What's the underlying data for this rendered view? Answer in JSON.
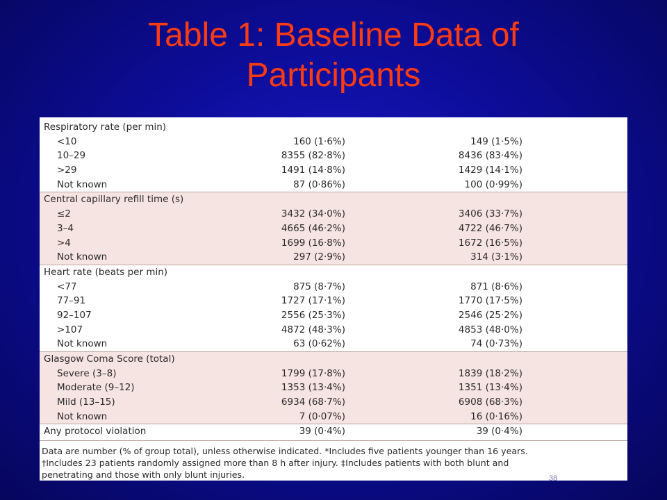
{
  "slide": {
    "title_line1": "Table 1: Baseline Data of",
    "title_line2": "Participants",
    "page_number": "38"
  },
  "table": {
    "sections": [
      {
        "header": "Respiratory rate (per min)",
        "rows": [
          {
            "label": "<10",
            "col1": "160 (1·6%)",
            "col2": "149 (1·5%)"
          },
          {
            "label": "10–29",
            "col1": "8355 (82·8%)",
            "col2": "8436 (83·4%)"
          },
          {
            "label": ">29",
            "col1": "1491 (14·8%)",
            "col2": "1429 (14·1%)"
          },
          {
            "label": "Not known",
            "col1": "87 (0·86%)",
            "col2": "100 (0·99%)"
          }
        ]
      },
      {
        "header": "Central capillary refill time (s)",
        "rows": [
          {
            "label": "≤2",
            "col1": "3432 (34·0%)",
            "col2": "3406 (33·7%)"
          },
          {
            "label": "3–4",
            "col1": "4665 (46·2%)",
            "col2": "4722 (46·7%)"
          },
          {
            "label": ">4",
            "col1": "1699 (16·8%)",
            "col2": "1672 (16·5%)"
          },
          {
            "label": "Not known",
            "col1": "297 (2·9%)",
            "col2": "314 (3·1%)"
          }
        ]
      },
      {
        "header": "Heart rate (beats per min)",
        "rows": [
          {
            "label": "<77",
            "col1": "875 (8·7%)",
            "col2": "871 (8·6%)"
          },
          {
            "label": "77–91",
            "col1": "1727 (17·1%)",
            "col2": "1770 (17·5%)"
          },
          {
            "label": "92–107",
            "col1": "2556 (25·3%)",
            "col2": "2546 (25·2%)"
          },
          {
            "label": ">107",
            "col1": "4872 (48·3%)",
            "col2": "4853 (48·0%)"
          },
          {
            "label": "Not known",
            "col1": "63 (0·62%)",
            "col2": "74 (0·73%)"
          }
        ]
      },
      {
        "header": "Glasgow Coma Score (total)",
        "rows": [
          {
            "label": "Severe (3–8)",
            "col1": "1799 (17·8%)",
            "col2": "1839 (18·2%)"
          },
          {
            "label": "Moderate (9–12)",
            "col1": "1353 (13·4%)",
            "col2": "1351 (13·4%)"
          },
          {
            "label": "Mild (13–15)",
            "col1": "6934 (68·7%)",
            "col2": "6908 (68·3%)"
          },
          {
            "label": "Not known",
            "col1": "7 (0·07%)",
            "col2": "16 (0·16%)"
          }
        ]
      }
    ],
    "protocol_row": {
      "label": "Any protocol violation",
      "col1": "39 (0·4%)",
      "col2": "39 (0·4%)"
    },
    "footnotes": [
      "Data are number (% of group total), unless otherwise indicated. *Includes five patients younger than 16 years.",
      "†Includes 23 patients randomly assigned more than 8 h after injury. ‡Includes patients with both blunt and",
      "penetrating and those with only blunt injuries."
    ]
  },
  "colors": {
    "background": "#0d0d9a",
    "title": "#ff3b12",
    "shaded_band": "#f6e4e2"
  }
}
